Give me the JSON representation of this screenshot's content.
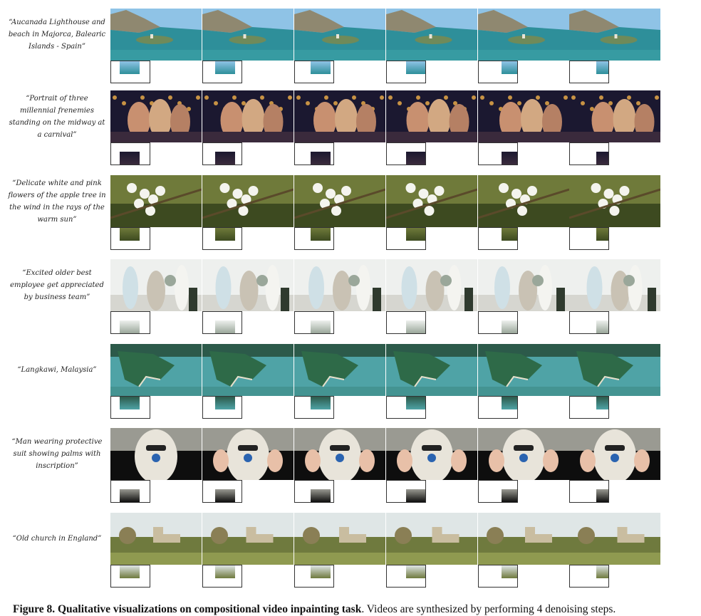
{
  "figure": {
    "label": "Figure 8.",
    "title": "Qualitative visualizations on compositional video inpainting task",
    "description": ". Videos are synthesized by performing 4 denoising steps."
  },
  "rows": [
    {
      "caption": "“Aucanada Lighthouse and beach in Majorca, Balearic Islands - Spain”",
      "scene": "coast",
      "palette": {
        "sky": "#8fc3e6",
        "mid": "#6f8a5a",
        "low": "#2e8f9a",
        "accent": "#e9e4d6"
      }
    },
    {
      "caption": "“Portrait of three millennial frenemies standing on the midway at a carnival”",
      "scene": "carnival",
      "palette": {
        "sky": "#1b1830",
        "mid": "#7a4a5c",
        "low": "#3a2a3c",
        "accent": "#f2b24a"
      }
    },
    {
      "caption": "“Delicate white and pink flowers of the apple tree in the wind in the rays of the warm sun”",
      "scene": "flowers",
      "palette": {
        "sky": "#6f7a3a",
        "mid": "#4e5a28",
        "low": "#3d4a20",
        "accent": "#f4f4ee"
      }
    },
    {
      "caption": "“Excited older best employee get appreciated by business team”",
      "scene": "office",
      "palette": {
        "sky": "#eef0ee",
        "mid": "#c9c2b4",
        "low": "#9aa79a",
        "accent": "#2f3a2e"
      }
    },
    {
      "caption": "“Langkawi, Malaysia”",
      "scene": "island",
      "palette": {
        "sky": "#2c5a4a",
        "mid": "#3d8a86",
        "low": "#4fa3a6",
        "accent": "#e6e0cc"
      }
    },
    {
      "caption": "“Man wearing protective suit showing palms with inscription”",
      "scene": "suit",
      "palette": {
        "sky": "#9a9a92",
        "mid": "#e8e4da",
        "low": "#0e0e0e",
        "accent": "#2a63b0"
      }
    },
    {
      "caption": "“Old church in England”",
      "scene": "church",
      "palette": {
        "sky": "#dfe6e6",
        "mid": "#8a7f55",
        "low": "#6f7a3e",
        "accent": "#c9bda0"
      }
    }
  ]
}
